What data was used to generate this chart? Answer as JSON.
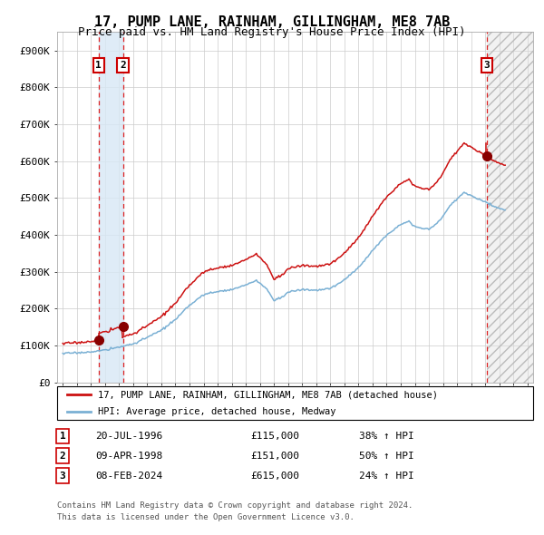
{
  "title": "17, PUMP LANE, RAINHAM, GILLINGHAM, ME8 7AB",
  "subtitle": "Price paid vs. HM Land Registry's House Price Index (HPI)",
  "title_fontsize": 11,
  "subtitle_fontsize": 9,
  "ylabel_ticks": [
    "£0",
    "£100K",
    "£200K",
    "£300K",
    "£400K",
    "£500K",
    "£600K",
    "£700K",
    "£800K",
    "£900K"
  ],
  "ytick_vals": [
    0,
    100000,
    200000,
    300000,
    400000,
    500000,
    600000,
    700000,
    800000,
    900000
  ],
  "ylim_max": 950000,
  "xlim_start": 1993.6,
  "xlim_end": 2027.4,
  "hpi_line_color": "#7ab0d4",
  "price_line_color": "#cc1111",
  "sale_marker_color": "#880000",
  "sale_vline_color": "#dd2222",
  "shade_color": "#d8e8f5",
  "hatch_color": "#bbbbbb",
  "grid_color": "#cccccc",
  "transaction_1_date": 1996.55,
  "transaction_2_date": 1998.27,
  "transaction_3_date": 2024.1,
  "transaction_1_price": 115000,
  "transaction_2_price": 151000,
  "transaction_3_price": 615000,
  "legend_line1": "17, PUMP LANE, RAINHAM, GILLINGHAM, ME8 7AB (detached house)",
  "legend_line2": "HPI: Average price, detached house, Medway",
  "table_rows": [
    [
      "1",
      "20-JUL-1996",
      "£115,000",
      "38% ↑ HPI"
    ],
    [
      "2",
      "09-APR-1998",
      "£151,000",
      "50% ↑ HPI"
    ],
    [
      "3",
      "08-FEB-2024",
      "£615,000",
      "24% ↑ HPI"
    ]
  ],
  "footnote_line1": "Contains HM Land Registry data © Crown copyright and database right 2024.",
  "footnote_line2": "This data is licensed under the Open Government Licence v3.0.",
  "background_color": "#ffffff"
}
